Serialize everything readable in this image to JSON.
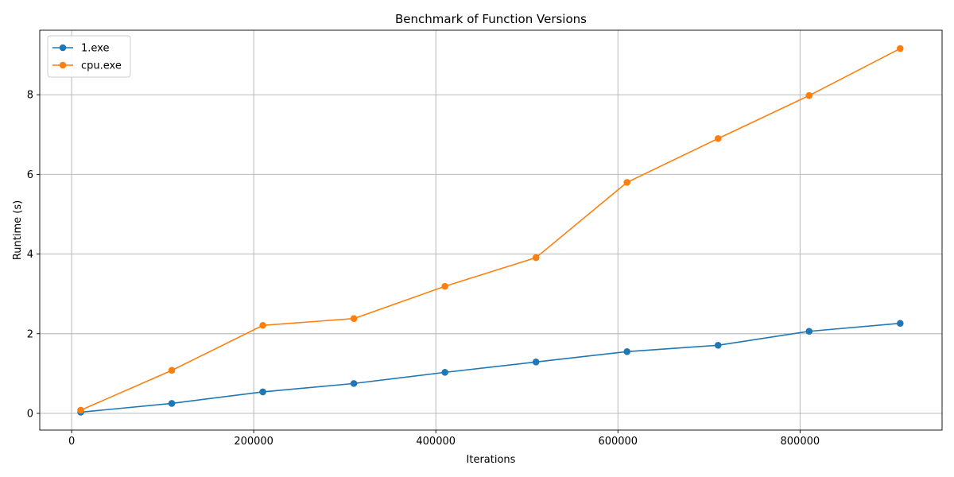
{
  "chart_data": {
    "type": "line",
    "title": "Benchmark of Function Versions",
    "xlabel": "Iterations",
    "ylabel": "Runtime (s)",
    "xlim": [
      -35000,
      956000
    ],
    "ylim": [
      -0.42,
      9.62
    ],
    "xticks": [
      0,
      200000,
      400000,
      600000,
      800000
    ],
    "xtick_labels": [
      "0",
      "200000",
      "400000",
      "600000",
      "800000"
    ],
    "yticks": [
      0,
      2,
      4,
      6,
      8
    ],
    "ytick_labels": [
      "0",
      "2",
      "4",
      "6",
      "8"
    ],
    "grid": true,
    "legend_position": "top-left",
    "x": [
      10000,
      110000,
      210000,
      310000,
      410000,
      510000,
      610000,
      710000,
      810000,
      910000
    ],
    "series": [
      {
        "name": "1.exe",
        "color": "#1f77b4",
        "marker": "circle",
        "values": [
          0.03,
          0.25,
          0.54,
          0.75,
          1.03,
          1.29,
          1.55,
          1.71,
          2.06,
          2.26
        ]
      },
      {
        "name": "cpu.exe",
        "color": "#ff7f0e",
        "marker": "circle",
        "values": [
          0.08,
          1.08,
          2.21,
          2.38,
          3.19,
          3.91,
          5.8,
          6.9,
          7.98,
          9.16
        ]
      }
    ]
  }
}
